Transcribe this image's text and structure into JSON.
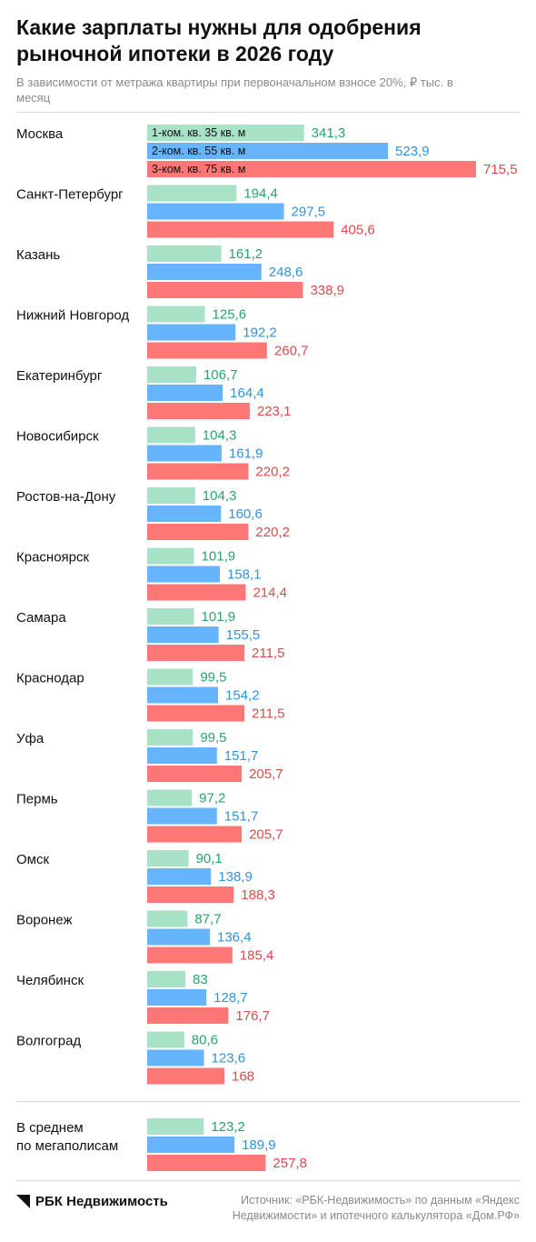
{
  "title": "Какие зарплаты нужны для одобрения рыночной ипотеки в 2026 году",
  "subtitle": "В зависимости от метража квартиры при первоначальном взносе 20%, ₽ тыс. в месяц",
  "footer": {
    "logo": "РБК Недвижимость",
    "source": "Источник: «РБК-Недвижимость» по данным «Яндекс Недвижимости» и ипотечного калькулятора «Дом.РФ»"
  },
  "colors": {
    "one_room": "#a8e2c6",
    "two_room": "#66b5fc",
    "three_room": "#fe7777",
    "one_room_text": "#27a36d",
    "two_room_text": "#2f93e0",
    "three_room_text": "#dc4a4a"
  },
  "chart_data": {
    "type": "bar",
    "orientation": "horizontal",
    "series": [
      {
        "name": "1-ком. кв. 35 кв. м",
        "values": [
          341.3,
          194.4,
          161.2,
          125.6,
          106.7,
          104.3,
          104.3,
          101.9,
          101.9,
          99.5,
          99.5,
          97.2,
          90.1,
          87.7,
          83,
          80.6,
          123.2
        ],
        "labels": [
          "341,3",
          "194,4",
          "161,2",
          "125,6",
          "106,7",
          "104,3",
          "104,3",
          "101,9",
          "101,9",
          "99,5",
          "99,5",
          "97,2",
          "90,1",
          "87,7",
          "83",
          "80,6",
          "123,2"
        ]
      },
      {
        "name": "2-ком. кв. 55 кв. м",
        "values": [
          523.9,
          297.5,
          248.6,
          192.2,
          164.4,
          161.9,
          160.6,
          158.1,
          155.5,
          154.2,
          151.7,
          151.7,
          138.9,
          136.4,
          128.7,
          123.6,
          189.9
        ],
        "labels": [
          "523,9",
          "297,5",
          "248,6",
          "192,2",
          "164,4",
          "161,9",
          "160,6",
          "158,1",
          "155,5",
          "154,2",
          "151,7",
          "151,7",
          "138,9",
          "136,4",
          "128,7",
          "123,6",
          "189,9"
        ]
      },
      {
        "name": "3-ком. кв. 75 кв. м",
        "values": [
          715.5,
          405.6,
          338.9,
          260.7,
          223.1,
          220.2,
          220.2,
          214.4,
          211.5,
          211.5,
          205.7,
          205.7,
          188.3,
          185.4,
          176.7,
          168,
          257.8
        ],
        "labels": [
          "715,5",
          "405,6",
          "338,9",
          "260,7",
          "223,1",
          "220,2",
          "220,2",
          "214,4",
          "211,5",
          "211,5",
          "205,7",
          "205,7",
          "188,3",
          "185,4",
          "176,7",
          "168",
          "257,8"
        ]
      }
    ],
    "categories": [
      [
        "Москва"
      ],
      [
        "Санкт-Петербург"
      ],
      [
        "Казань"
      ],
      [
        "Нижний Новгород"
      ],
      [
        "Екатеринбург"
      ],
      [
        "Новосибирск"
      ],
      [
        "Ростов-на-Дону"
      ],
      [
        "Красноярск"
      ],
      [
        "Самара"
      ],
      [
        "Краснодар"
      ],
      [
        "Уфа"
      ],
      [
        "Пермь"
      ],
      [
        "Омск"
      ],
      [
        "Воронеж"
      ],
      [
        "Челябинск"
      ],
      [
        "Волгоград"
      ],
      [
        "В среднем",
        "по мегаполисам"
      ]
    ],
    "xlim": [
      0,
      715.5
    ],
    "legend": "inside first group bars",
    "grid": false
  }
}
